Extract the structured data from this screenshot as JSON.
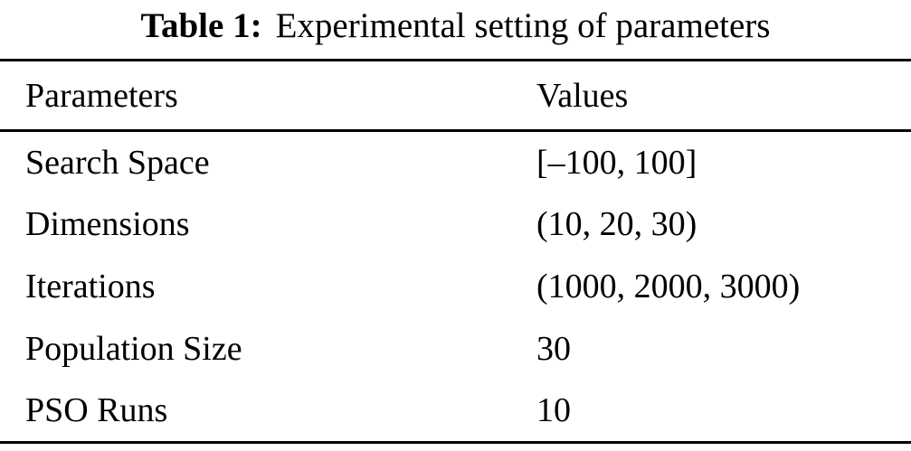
{
  "caption": {
    "label": "Table 1:",
    "text": "Experimental setting of parameters"
  },
  "table": {
    "columns": [
      "Parameters",
      "Values"
    ],
    "rows": [
      {
        "parameter": "Search Space",
        "value": "[–100, 100]"
      },
      {
        "parameter": "Dimensions",
        "value": "(10, 20, 30)"
      },
      {
        "parameter": "Iterations",
        "value": "(1000, 2000, 3000)"
      },
      {
        "parameter": "Population Size",
        "value": "30"
      },
      {
        "parameter": "PSO Runs",
        "value": "10"
      }
    ]
  },
  "colors": {
    "text": "#000000",
    "background": "#ffffff",
    "rule": "#000000"
  }
}
